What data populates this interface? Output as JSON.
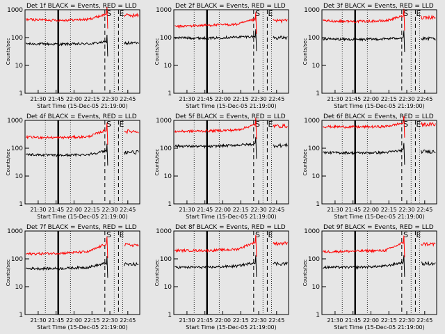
{
  "chart_data": {
    "type": "line",
    "y_scale": "log",
    "ylim": [
      1,
      1000
    ],
    "xlim": [
      "21:19:00",
      "22:55:00"
    ],
    "ylabel": "Counts/sec",
    "xlabel": "Start Time (15-Dec-05 21:19:00)",
    "x_ticks": [
      "21:30",
      "21:45",
      "22:00",
      "22:15",
      "22:30",
      "22:45"
    ],
    "y_ticks": [
      "1",
      "10",
      "100",
      "1000"
    ],
    "layout": "3x3 grid",
    "colors": {
      "events": "#000000",
      "lld": "#ff0000",
      "background": "#e6e6e6"
    },
    "markers": [
      {
        "label": "S",
        "time": "22:27",
        "style": "solid"
      },
      {
        "label": "E",
        "time": "22:39",
        "style": "dashed"
      },
      {
        "label": "",
        "time": "22:43",
        "style": "solid"
      }
    ],
    "panels": [
      {
        "title": "Det 1f BLACK = Events, RED = LLD",
        "series": [
          {
            "name": "Events",
            "color": "#000000",
            "values": [
              [
                21.33,
                60
              ],
              [
                21.8,
                58
              ],
              [
                22.2,
                60
              ],
              [
                22.45,
                70
              ]
            ]
          },
          {
            "name": "LLD",
            "color": "#ff0000",
            "values": [
              [
                21.33,
                450
              ],
              [
                21.8,
                420
              ],
              [
                22.2,
                450
              ],
              [
                22.45,
                700
              ]
            ]
          }
        ]
      },
      {
        "title": "Det 2f BLACK = Events, RED = LLD",
        "series": [
          {
            "name": "Events",
            "color": "#000000",
            "values": [
              [
                21.33,
                100
              ],
              [
                21.8,
                95
              ],
              [
                22.2,
                105
              ],
              [
                22.45,
                110
              ]
            ]
          },
          {
            "name": "LLD",
            "color": "#ff0000",
            "values": [
              [
                21.33,
                250
              ],
              [
                21.8,
                280
              ],
              [
                22.2,
                300
              ],
              [
                22.45,
                450
              ]
            ]
          }
        ]
      },
      {
        "title": "Det 3f BLACK = Events, RED = LLD",
        "series": [
          {
            "name": "Events",
            "color": "#000000",
            "values": [
              [
                21.33,
                90
              ],
              [
                21.8,
                85
              ],
              [
                22.2,
                90
              ],
              [
                22.45,
                100
              ]
            ]
          },
          {
            "name": "LLD",
            "color": "#ff0000",
            "values": [
              [
                21.33,
                400
              ],
              [
                21.8,
                380
              ],
              [
                22.2,
                400
              ],
              [
                22.45,
                600
              ]
            ]
          }
        ]
      },
      {
        "title": "Det 4f BLACK = Events, RED = LLD",
        "series": [
          {
            "name": "Events",
            "color": "#000000",
            "values": [
              [
                21.33,
                60
              ],
              [
                21.8,
                55
              ],
              [
                22.2,
                60
              ],
              [
                22.45,
                80
              ]
            ]
          },
          {
            "name": "LLD",
            "color": "#ff0000",
            "values": [
              [
                21.33,
                250
              ],
              [
                21.8,
                240
              ],
              [
                22.2,
                260
              ],
              [
                22.45,
                450
              ]
            ]
          }
        ]
      },
      {
        "title": "Det 5f BLACK = Events, RED = LLD",
        "series": [
          {
            "name": "Events",
            "color": "#000000",
            "values": [
              [
                21.33,
                120
              ],
              [
                21.8,
                115
              ],
              [
                22.2,
                130
              ],
              [
                22.45,
                140
              ]
            ]
          },
          {
            "name": "LLD",
            "color": "#ff0000",
            "values": [
              [
                21.33,
                400
              ],
              [
                21.8,
                420
              ],
              [
                22.2,
                450
              ],
              [
                22.45,
                700
              ]
            ]
          }
        ]
      },
      {
        "title": "Det 6f BLACK = Events, RED = LLD",
        "series": [
          {
            "name": "Events",
            "color": "#000000",
            "values": [
              [
                21.33,
                70
              ],
              [
                21.8,
                68
              ],
              [
                22.2,
                70
              ],
              [
                22.45,
                85
              ]
            ]
          },
          {
            "name": "LLD",
            "color": "#ff0000",
            "values": [
              [
                21.33,
                600
              ],
              [
                21.8,
                580
              ],
              [
                22.2,
                600
              ],
              [
                22.45,
                800
              ]
            ]
          }
        ]
      },
      {
        "title": "Det 7f BLACK = Events, RED = LLD",
        "series": [
          {
            "name": "Events",
            "color": "#000000",
            "values": [
              [
                21.33,
                45
              ],
              [
                21.8,
                45
              ],
              [
                22.2,
                50
              ],
              [
                22.45,
                70
              ]
            ]
          },
          {
            "name": "LLD",
            "color": "#ff0000",
            "values": [
              [
                21.33,
                150
              ],
              [
                21.8,
                160
              ],
              [
                22.2,
                180
              ],
              [
                22.45,
                350
              ]
            ]
          }
        ]
      },
      {
        "title": "Det 8f BLACK = Events, RED = LLD",
        "series": [
          {
            "name": "Events",
            "color": "#000000",
            "values": [
              [
                21.33,
                50
              ],
              [
                21.8,
                50
              ],
              [
                22.2,
                55
              ],
              [
                22.45,
                75
              ]
            ]
          },
          {
            "name": "LLD",
            "color": "#ff0000",
            "values": [
              [
                21.33,
                200
              ],
              [
                21.8,
                200
              ],
              [
                22.2,
                220
              ],
              [
                22.45,
                400
              ]
            ]
          }
        ]
      },
      {
        "title": "Det 9f BLACK = Events, RED = LLD",
        "series": [
          {
            "name": "Events",
            "color": "#000000",
            "values": [
              [
                21.33,
                50
              ],
              [
                21.8,
                50
              ],
              [
                22.2,
                55
              ],
              [
                22.45,
                75
              ]
            ]
          },
          {
            "name": "LLD",
            "color": "#ff0000",
            "values": [
              [
                21.33,
                180
              ],
              [
                21.8,
                190
              ],
              [
                22.2,
                200
              ],
              [
                22.45,
                380
              ]
            ]
          }
        ]
      }
    ]
  }
}
